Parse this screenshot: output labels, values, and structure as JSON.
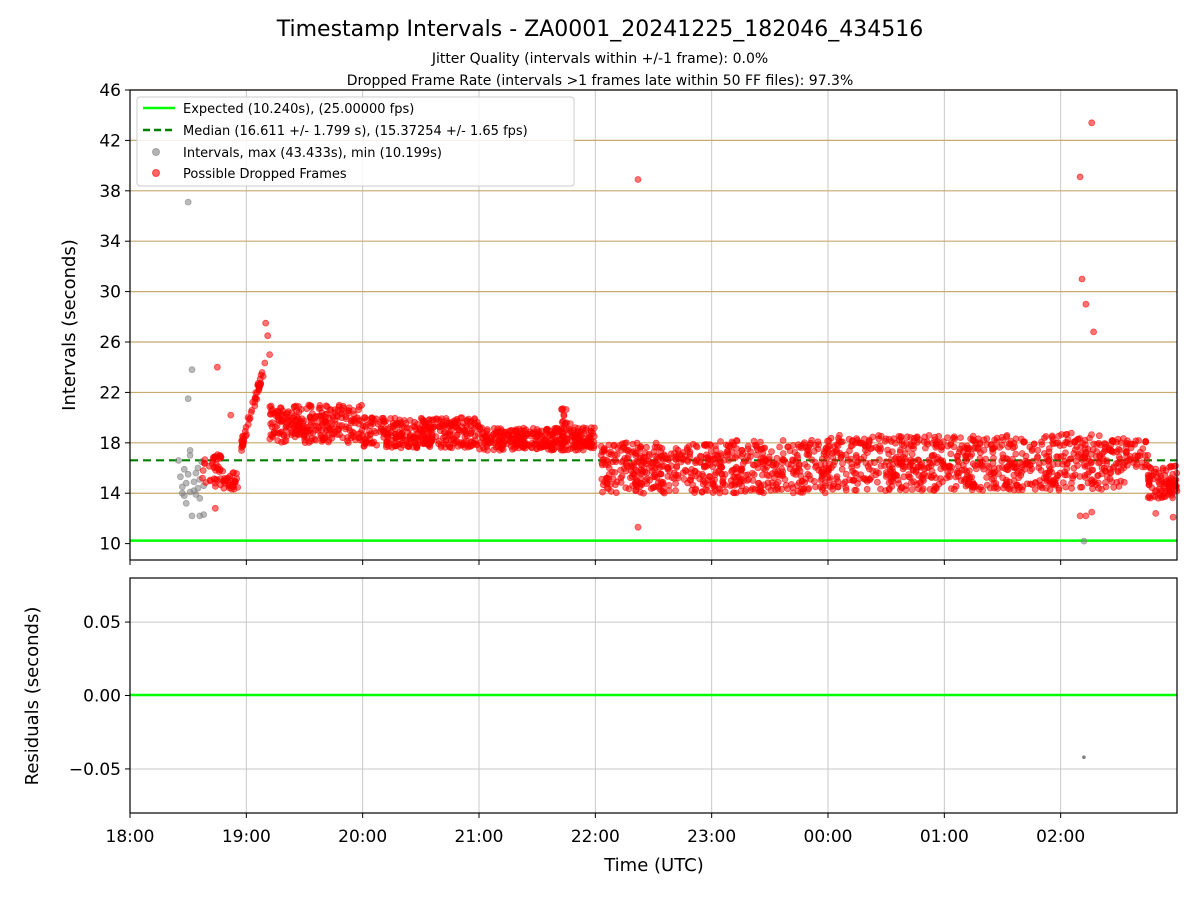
{
  "title": "Timestamp Intervals - ZA0001_20241225_182046_434516",
  "subtitle1": "Jitter Quality (intervals within +/-1 frame): 0.0%",
  "subtitle2": "Dropped Frame Rate (intervals >1 frames late within 50 FF files): 97.3%",
  "colors": {
    "expected": "#00ff00",
    "median": "#008000",
    "intervals": "#808080",
    "dropped": "#ff0000",
    "hgrid": "#c8a96e",
    "vgrid": "#c8c8c8"
  },
  "chart_data": [
    {
      "type": "scatter",
      "panel": "top",
      "ylabel": "Intervals (seconds)",
      "ylim": [
        8.7,
        46
      ],
      "yticks": [
        "10",
        "14",
        "18",
        "22",
        "26",
        "30",
        "34",
        "38",
        "42",
        "46"
      ],
      "xlim_hours": [
        18.0,
        27.0
      ],
      "grid": true,
      "legend_position": "top-left",
      "legend": [
        {
          "key": "expected",
          "label": "Expected (10.240s), (25.00000 fps)",
          "marker": "line",
          "color": "#00ff00"
        },
        {
          "key": "median",
          "label": "Median (16.611 +/- 1.799 s), (15.37254 +/- 1.65 fps)",
          "marker": "dashed",
          "color": "#008000"
        },
        {
          "key": "intervals",
          "label": "Intervals, max (43.433s), min (10.199s)",
          "marker": "dot",
          "color": "#808080"
        },
        {
          "key": "dropped",
          "label": "Possible Dropped Frames",
          "marker": "dot",
          "color": "#ff0000"
        }
      ],
      "expected_value": 10.24,
      "median_value": 16.611,
      "series": [
        {
          "name": "Intervals, max (43.433s), min (10.199s)",
          "color": "#808080",
          "points": [
            [
              "18:25",
              16.6
            ],
            [
              "18:26",
              15.3
            ],
            [
              "18:27",
              14.0
            ],
            [
              "18:27",
              14.5
            ],
            [
              "18:28",
              13.8
            ],
            [
              "18:29",
              13.2
            ],
            [
              "18:29",
              14.8
            ],
            [
              "18:30",
              15.5
            ],
            [
              "18:30",
              37.1
            ],
            [
              "18:30",
              21.5
            ],
            [
              "18:31",
              17.4
            ],
            [
              "18:31",
              17.0
            ],
            [
              "18:32",
              23.8
            ],
            [
              "18:32",
              12.2
            ],
            [
              "18:33",
              14.2
            ],
            [
              "18:33",
              14.9
            ],
            [
              "18:34",
              15.6
            ],
            [
              "18:34",
              13.9
            ],
            [
              "18:35",
              16.0
            ],
            [
              "18:35",
              14.4
            ],
            [
              "18:36",
              12.2
            ],
            [
              "18:36",
              15.1
            ],
            [
              "18:37",
              16.5
            ],
            [
              "18:38",
              12.3
            ],
            [
              "18:38",
              14.6
            ],
            [
              "18:28",
              15.9
            ],
            [
              "18:31",
              14.1
            ],
            [
              "18:36",
              13.6
            ],
            [
              "02:12",
              10.2
            ]
          ]
        },
        {
          "name": "Possible Dropped Frames",
          "color": "#ff0000",
          "points": [
            [
              "18:45",
              24.0
            ],
            [
              "18:52",
              20.2
            ],
            [
              "22:22",
              38.9
            ],
            [
              "22:22",
              11.3
            ],
            [
              "02:10",
              39.1
            ],
            [
              "02:11",
              31.0
            ],
            [
              "02:13",
              29.0
            ],
            [
              "02:16",
              43.4
            ],
            [
              "02:17",
              26.8
            ],
            [
              "02:10",
              12.2
            ],
            [
              "02:13",
              12.2
            ],
            [
              "02:16",
              12.5
            ],
            [
              "18:44",
              12.8
            ],
            [
              "02:49",
              12.4
            ],
            [
              "02:58",
              12.1
            ],
            [
              "19:10",
              27.5
            ],
            [
              "19:11",
              26.5
            ],
            [
              "19:12",
              25.0
            ]
          ]
        }
      ]
    },
    {
      "type": "scatter",
      "panel": "bottom",
      "xlabel": "Time (UTC)",
      "ylabel": "Residuals (seconds)",
      "ylim": [
        -0.08,
        0.08
      ],
      "yticks": [
        "0.05",
        "0.00",
        "−0.05"
      ],
      "xticks": [
        "18:00",
        "19:00",
        "20:00",
        "21:00",
        "22:00",
        "23:00",
        "00:00",
        "01:00",
        "02:00"
      ],
      "grid": true,
      "zero_line": 0.0,
      "series": [
        {
          "color": "#808080",
          "points": [
            [
              "02:12",
              -0.042
            ]
          ]
        }
      ]
    }
  ]
}
